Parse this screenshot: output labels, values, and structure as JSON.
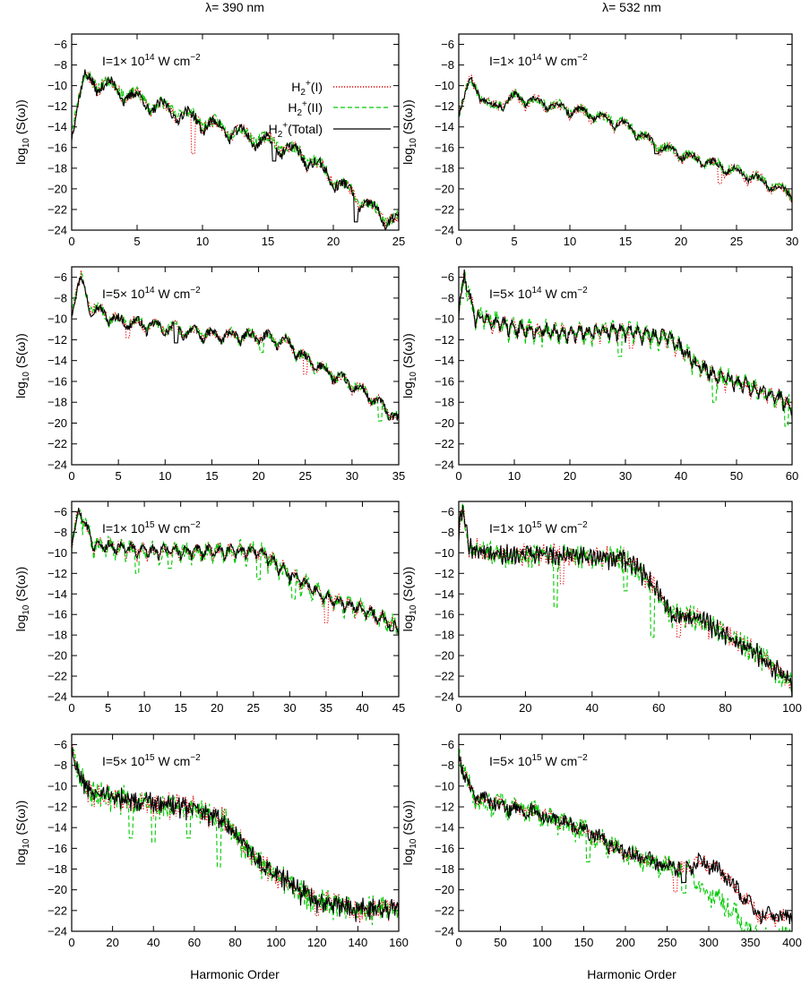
{
  "figure": {
    "column_titles": [
      "λ= 390 nm",
      "λ= 532 nm"
    ],
    "ylabel": "log10 (S(ω))",
    "xlabel": "Harmonic Order"
  },
  "legend": {
    "placement": "top-right of first panel",
    "entries": [
      {
        "label": "H2+(I)",
        "color": "#e00000",
        "style": "dotted"
      },
      {
        "label": "H2+(II)",
        "color": "#00cc00",
        "style": "dashed"
      },
      {
        "label": "H2+(Total)",
        "color": "#000000",
        "style": "solid"
      }
    ]
  },
  "chart_data": [
    {
      "type": "line",
      "row": 0,
      "col": 0,
      "wavelength": "λ= 390 nm",
      "annotation": "I=1× 10^14 W cm^-2",
      "xlim": [
        0,
        25
      ],
      "ylim": [
        -24,
        -5
      ],
      "xticks": [
        0,
        5,
        10,
        15,
        20,
        25
      ],
      "yticks": [
        -6,
        -8,
        -10,
        -12,
        -14,
        -16,
        -18,
        -20,
        -22,
        -24
      ],
      "envelope": [
        [
          0,
          -13.5
        ],
        [
          1,
          -8.8
        ],
        [
          3,
          -9.6
        ],
        [
          6,
          -11.3
        ],
        [
          8,
          -12
        ],
        [
          10,
          -13
        ],
        [
          12,
          -13.8
        ],
        [
          14,
          -14.6
        ],
        [
          16,
          -15.3
        ],
        [
          18,
          -16.5
        ],
        [
          20,
          -18.5
        ],
        [
          22,
          -20.6
        ],
        [
          24,
          -22.3
        ],
        [
          25,
          -22.6
        ]
      ],
      "series": [
        {
          "name": "H2+(I)",
          "color": "#e00000",
          "dash": "1.2,1.8",
          "seed": 11,
          "noise": 0.6,
          "osc": 1.4,
          "period": 2,
          "dips": [
            [
              9.3,
              -16.6
            ]
          ]
        },
        {
          "name": "H2+(II)",
          "color": "#00cc00",
          "dash": "5,3",
          "seed": 23,
          "noise": 0.6,
          "osc": 1.1,
          "period": 2,
          "dips": []
        },
        {
          "name": "H2+(Total)",
          "color": "#000000",
          "dash": "",
          "seed": 37,
          "noise": 0.5,
          "osc": 1.6,
          "period": 2,
          "dips": [
            [
              15.5,
              -17.3
            ],
            [
              21.7,
              -23.2
            ]
          ]
        }
      ]
    },
    {
      "type": "line",
      "row": 0,
      "col": 1,
      "wavelength": "λ= 532 nm",
      "annotation": "I=1× 10^14 W cm^-2",
      "xlim": [
        0,
        30
      ],
      "ylim": [
        -24,
        -5
      ],
      "xticks": [
        0,
        5,
        10,
        15,
        20,
        25,
        30
      ],
      "yticks": [
        -6,
        -8,
        -10,
        -12,
        -14,
        -16,
        -18,
        -20,
        -22,
        -24
      ],
      "envelope": [
        [
          0,
          -12
        ],
        [
          1,
          -9.3
        ],
        [
          3,
          -11.8
        ],
        [
          5,
          -10.8
        ],
        [
          8,
          -11.5
        ],
        [
          12,
          -12.5
        ],
        [
          15,
          -13.5
        ],
        [
          18,
          -15.6
        ],
        [
          22,
          -17
        ],
        [
          26,
          -18.3
        ],
        [
          30,
          -20.2
        ]
      ],
      "series": [
        {
          "name": "H2+(I)",
          "color": "#e00000",
          "dash": "1.2,1.8",
          "seed": 41,
          "noise": 0.5,
          "osc": 1.0,
          "period": 2,
          "dips": [
            [
              23.5,
              -19.5
            ]
          ]
        },
        {
          "name": "H2+(II)",
          "color": "#00cc00",
          "dash": "5,3",
          "seed": 53,
          "noise": 0.5,
          "osc": 0.8,
          "period": 2,
          "dips": []
        },
        {
          "name": "H2+(Total)",
          "color": "#000000",
          "dash": "",
          "seed": 67,
          "noise": 0.3,
          "osc": 0.9,
          "period": 2,
          "dips": [
            [
              17.8,
              -16.6
            ]
          ]
        }
      ]
    },
    {
      "type": "line",
      "row": 1,
      "col": 0,
      "wavelength": "λ= 390 nm",
      "annotation": "I=5× 10^14 W cm^-2",
      "xlim": [
        0,
        35
      ],
      "ylim": [
        -24,
        -5
      ],
      "xticks": [
        0,
        5,
        10,
        15,
        20,
        25,
        30,
        35
      ],
      "yticks": [
        -6,
        -8,
        -10,
        -12,
        -14,
        -16,
        -18,
        -20,
        -22,
        -24
      ],
      "envelope": [
        [
          0,
          -8.5
        ],
        [
          1,
          -5.8
        ],
        [
          2,
          -8.5
        ],
        [
          5,
          -9.8
        ],
        [
          10,
          -10.5
        ],
        [
          15,
          -11.2
        ],
        [
          20,
          -11.3
        ],
        [
          23,
          -11.8
        ],
        [
          25,
          -13.5
        ],
        [
          28,
          -15
        ],
        [
          31,
          -16.5
        ],
        [
          34,
          -18.5
        ],
        [
          35,
          -19.5
        ]
      ],
      "series": [
        {
          "name": "H2+(I)",
          "color": "#e00000",
          "dash": "1.2,1.8",
          "seed": 71,
          "noise": 0.5,
          "osc": 1.0,
          "period": 2,
          "dips": [
            [
              6,
              -11.8
            ],
            [
              25,
              -15.3
            ]
          ]
        },
        {
          "name": "H2+(II)",
          "color": "#00cc00",
          "dash": "5,3",
          "seed": 83,
          "noise": 0.5,
          "osc": 0.9,
          "period": 2,
          "dips": [
            [
              20.3,
              -13.2
            ],
            [
              33,
              -19.8
            ]
          ]
        },
        {
          "name": "H2+(Total)",
          "color": "#000000",
          "dash": "",
          "seed": 97,
          "noise": 0.4,
          "osc": 1.1,
          "period": 2,
          "dips": [
            [
              11.2,
              -12.3
            ]
          ]
        }
      ]
    },
    {
      "type": "line",
      "row": 1,
      "col": 1,
      "wavelength": "λ= 532 nm",
      "annotation": "I=5× 10^14 W cm^-2",
      "xlim": [
        0,
        60
      ],
      "ylim": [
        -24,
        -5
      ],
      "xticks": [
        0,
        10,
        20,
        30,
        40,
        50,
        60
      ],
      "yticks": [
        -6,
        -8,
        -10,
        -12,
        -14,
        -16,
        -18,
        -20,
        -22,
        -24
      ],
      "envelope": [
        [
          0,
          -8.5
        ],
        [
          1,
          -5.6
        ],
        [
          3,
          -9.3
        ],
        [
          10,
          -10.5
        ],
        [
          20,
          -11
        ],
        [
          30,
          -10.7
        ],
        [
          38,
          -11.5
        ],
        [
          42,
          -13.5
        ],
        [
          46,
          -15
        ],
        [
          52,
          -16
        ],
        [
          58,
          -17.3
        ],
        [
          60,
          -18
        ]
      ],
      "series": [
        {
          "name": "H2+(I)",
          "color": "#e00000",
          "dash": "1.2,1.8",
          "seed": 101,
          "noise": 0.6,
          "osc": 1.2,
          "period": 1.5,
          "dips": [
            [
              31,
              -12.8
            ]
          ]
        },
        {
          "name": "H2+(II)",
          "color": "#00cc00",
          "dash": "5,3",
          "seed": 113,
          "noise": 0.8,
          "osc": 1.2,
          "period": 1.5,
          "dips": [
            [
              29,
              -13.6
            ],
            [
              46,
              -18
            ],
            [
              59,
              -20.3
            ]
          ]
        },
        {
          "name": "H2+(Total)",
          "color": "#000000",
          "dash": "",
          "seed": 127,
          "noise": 0.5,
          "osc": 1.1,
          "period": 1.5,
          "dips": [
            [
              43,
              -14.5
            ]
          ]
        }
      ]
    },
    {
      "type": "line",
      "row": 2,
      "col": 0,
      "wavelength": "λ= 390 nm",
      "annotation": "I=1× 10^15 W cm^-2",
      "xlim": [
        0,
        45
      ],
      "ylim": [
        -24,
        -5
      ],
      "xticks": [
        0,
        5,
        10,
        15,
        20,
        25,
        30,
        35,
        40,
        45
      ],
      "yticks": [
        -6,
        -8,
        -10,
        -12,
        -14,
        -16,
        -18,
        -20,
        -22,
        -24
      ],
      "envelope": [
        [
          0,
          -8.5
        ],
        [
          1,
          -5.5
        ],
        [
          3,
          -8.8
        ],
        [
          10,
          -9.5
        ],
        [
          20,
          -9.5
        ],
        [
          26,
          -9.5
        ],
        [
          30,
          -11.8
        ],
        [
          35,
          -14
        ],
        [
          40,
          -15.2
        ],
        [
          44,
          -16.5
        ],
        [
          45,
          -17
        ]
      ],
      "series": [
        {
          "name": "H2+(I)",
          "color": "#e00000",
          "dash": "1.2,1.8",
          "seed": 131,
          "noise": 0.6,
          "osc": 1.0,
          "period": 1.5,
          "dips": [
            [
              35,
              -16.8
            ]
          ]
        },
        {
          "name": "H2+(II)",
          "color": "#00cc00",
          "dash": "5,3",
          "seed": 149,
          "noise": 0.8,
          "osc": 1.2,
          "period": 1.5,
          "dips": [
            [
              9,
              -12
            ],
            [
              13.5,
              -11.5
            ],
            [
              25.7,
              -12.6
            ],
            [
              30.5,
              -14.5
            ]
          ]
        },
        {
          "name": "H2+(Total)",
          "color": "#000000",
          "dash": "",
          "seed": 157,
          "noise": 0.4,
          "osc": 0.9,
          "period": 1.5,
          "dips": [
            [
              44,
              -17.6
            ]
          ]
        }
      ]
    },
    {
      "type": "line",
      "row": 2,
      "col": 1,
      "wavelength": "λ= 532 nm",
      "annotation": "I=1× 10^15 W cm^-2",
      "xlim": [
        0,
        100
      ],
      "ylim": [
        -24,
        -5
      ],
      "xticks": [
        0,
        20,
        40,
        60,
        80,
        100
      ],
      "yticks": [
        -6,
        -8,
        -10,
        -12,
        -14,
        -16,
        -18,
        -20,
        -22,
        -24
      ],
      "envelope": [
        [
          0,
          -7.5
        ],
        [
          1,
          -5.2
        ],
        [
          3,
          -9
        ],
        [
          10,
          -9.8
        ],
        [
          30,
          -9.8
        ],
        [
          50,
          -10.2
        ],
        [
          55,
          -11.5
        ],
        [
          60,
          -13.5
        ],
        [
          64,
          -15.8
        ],
        [
          72,
          -16
        ],
        [
          80,
          -17.6
        ],
        [
          90,
          -19.5
        ],
        [
          100,
          -22.5
        ]
      ],
      "series": [
        {
          "name": "H2+(I)",
          "color": "#e00000",
          "dash": "1.2,1.8",
          "seed": 163,
          "noise": 0.8,
          "osc": 1.0,
          "period": 1,
          "dips": [
            [
              31,
              -13
            ],
            [
              66,
              -18.2
            ]
          ]
        },
        {
          "name": "H2+(II)",
          "color": "#00cc00",
          "dash": "5,3",
          "seed": 173,
          "noise": 0.9,
          "osc": 1.1,
          "period": 1,
          "dips": [
            [
              29,
              -15.3
            ],
            [
              50,
              -13.7
            ],
            [
              58,
              -18.2
            ]
          ]
        },
        {
          "name": "H2+(Total)",
          "color": "#000000",
          "dash": "",
          "seed": 181,
          "noise": 0.7,
          "osc": 1.0,
          "period": 1,
          "dips": []
        }
      ]
    },
    {
      "type": "line",
      "row": 3,
      "col": 0,
      "wavelength": "λ= 390 nm",
      "annotation": "I=5× 10^15 W cm^-2",
      "xlim": [
        0,
        160
      ],
      "ylim": [
        -24,
        -5
      ],
      "xticks": [
        0,
        20,
        40,
        60,
        80,
        100,
        120,
        140,
        160
      ],
      "yticks": [
        -6,
        -8,
        -10,
        -12,
        -14,
        -16,
        -18,
        -20,
        -22,
        -24
      ],
      "envelope": [
        [
          0,
          -5.8
        ],
        [
          3,
          -8.5
        ],
        [
          10,
          -10.3
        ],
        [
          30,
          -11
        ],
        [
          60,
          -11.8
        ],
        [
          75,
          -13
        ],
        [
          85,
          -15.5
        ],
        [
          95,
          -17.5
        ],
        [
          110,
          -19.5
        ],
        [
          120,
          -20.6
        ],
        [
          140,
          -21.5
        ],
        [
          160,
          -21.5
        ]
      ],
      "series": [
        {
          "name": "H2+(I)",
          "color": "#e00000",
          "dash": "1.2,1.8",
          "seed": 191,
          "noise": 0.9,
          "osc": 1.0,
          "period": 1,
          "dips": [
            [
              120,
              -22.5
            ],
            [
              123,
              -21.8
            ]
          ]
        },
        {
          "name": "H2+(II)",
          "color": "#00cc00",
          "dash": "5,3",
          "seed": 197,
          "noise": 1.0,
          "osc": 1.1,
          "period": 1,
          "dips": [
            [
              29,
              -15
            ],
            [
              40,
              -15.4
            ],
            [
              57,
              -15
            ],
            [
              72,
              -17.8
            ]
          ]
        },
        {
          "name": "H2+(Total)",
          "color": "#000000",
          "dash": "",
          "seed": 211,
          "noise": 0.8,
          "osc": 1.0,
          "period": 1,
          "dips": []
        }
      ]
    },
    {
      "type": "line",
      "row": 3,
      "col": 1,
      "wavelength": "λ= 532 nm",
      "annotation": "I=5× 10^15 W cm^-2",
      "xlim": [
        0,
        400
      ],
      "ylim": [
        -24,
        -5
      ],
      "xticks": [
        0,
        50,
        100,
        150,
        200,
        250,
        300,
        350,
        400
      ],
      "yticks": [
        -6,
        -8,
        -10,
        -12,
        -14,
        -16,
        -18,
        -20,
        -22,
        -24
      ],
      "envelope": [
        [
          0,
          -6
        ],
        [
          5,
          -8.5
        ],
        [
          20,
          -11
        ],
        [
          100,
          -12.5
        ],
        [
          150,
          -14
        ],
        [
          200,
          -16.2
        ],
        [
          250,
          -17.5
        ],
        [
          270,
          -17.8
        ],
        [
          290,
          -17
        ],
        [
          300,
          -17.3
        ],
        [
          320,
          -18.4
        ],
        [
          340,
          -20.3
        ],
        [
          360,
          -22.2
        ],
        [
          400,
          -22.5
        ]
      ],
      "series": [
        {
          "name": "H2+(I)",
          "color": "#e00000",
          "dash": "1.2,1.8",
          "seed": 223,
          "noise": 0.7,
          "osc": 0.6,
          "period": 1,
          "dips": [
            [
              260,
              -20.2
            ]
          ]
        },
        {
          "name": "H2+(II)",
          "color": "#00cc00",
          "dash": "5,3",
          "seed": 227,
          "noise": 1.0,
          "osc": 0.8,
          "period": 1,
          "dips": [
            [
              155,
              -17.3
            ],
            [
              270,
              -20.3
            ]
          ],
          "tail": [
            [
              280,
              -18
            ],
            [
              290,
              -19.7
            ],
            [
              300,
              -20.2
            ],
            [
              320,
              -21
            ],
            [
              340,
              -22.8
            ],
            [
              350,
              -24
            ],
            [
              400,
              -24
            ]
          ]
        },
        {
          "name": "H2+(Total)",
          "color": "#000000",
          "dash": "",
          "seed": 229,
          "noise": 0.7,
          "osc": 0.6,
          "period": 1,
          "dips": [
            [
              270,
              -19.3
            ]
          ]
        }
      ]
    }
  ]
}
